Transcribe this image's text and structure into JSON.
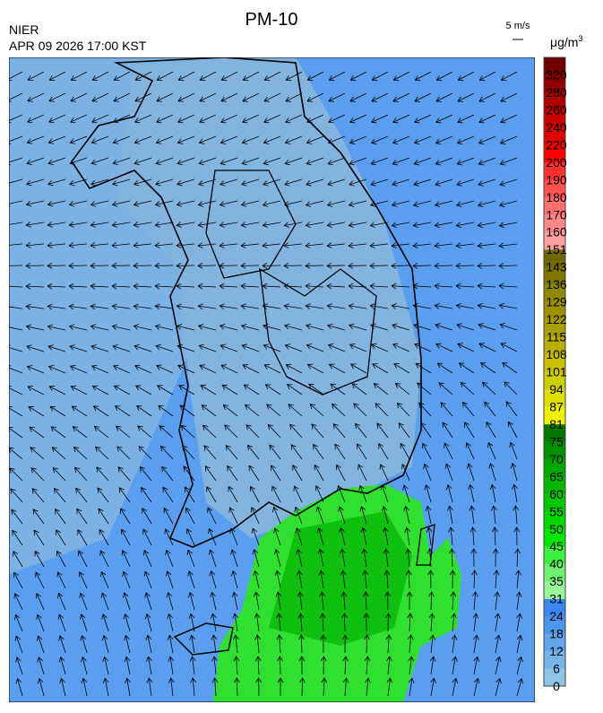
{
  "header": {
    "title": "PM-10",
    "agency": "NIER",
    "datetime": "APR 09 2026 17:00 KST",
    "wind_scale": "5 m/s"
  },
  "colorbar": {
    "unit": "μg/m",
    "unit_superscript": "3",
    "labels": [
      "0",
      "6",
      "12",
      "18",
      "24",
      "31",
      "35",
      "40",
      "45",
      "50",
      "55",
      "60",
      "65",
      "70",
      "75",
      "81",
      "87",
      "94",
      "101",
      "108",
      "115",
      "122",
      "129",
      "136",
      "143",
      "151",
      "160",
      "170",
      "180",
      "190",
      "200",
      "220",
      "240",
      "260",
      "280",
      "320"
    ],
    "colors": [
      "#8ec5e6",
      "#78b5e8",
      "#62a5ea",
      "#4a96ec",
      "#3a88f0",
      "#98f898",
      "#70f070",
      "#40f040",
      "#00e800",
      "#00d800",
      "#00c800",
      "#00b800",
      "#00a800",
      "#009000",
      "#007800",
      "#f0f000",
      "#e0e000",
      "#d0d000",
      "#c8c000",
      "#b8b000",
      "#a8a000",
      "#a09000",
      "#908800",
      "#807800",
      "#706800",
      "#ffa0a0",
      "#ff8888",
      "#ff7070",
      "#ff5050",
      "#ff3030",
      "#ff0000",
      "#e00000",
      "#c80000",
      "#b00000",
      "#900000",
      "#700000"
    ]
  }
}
